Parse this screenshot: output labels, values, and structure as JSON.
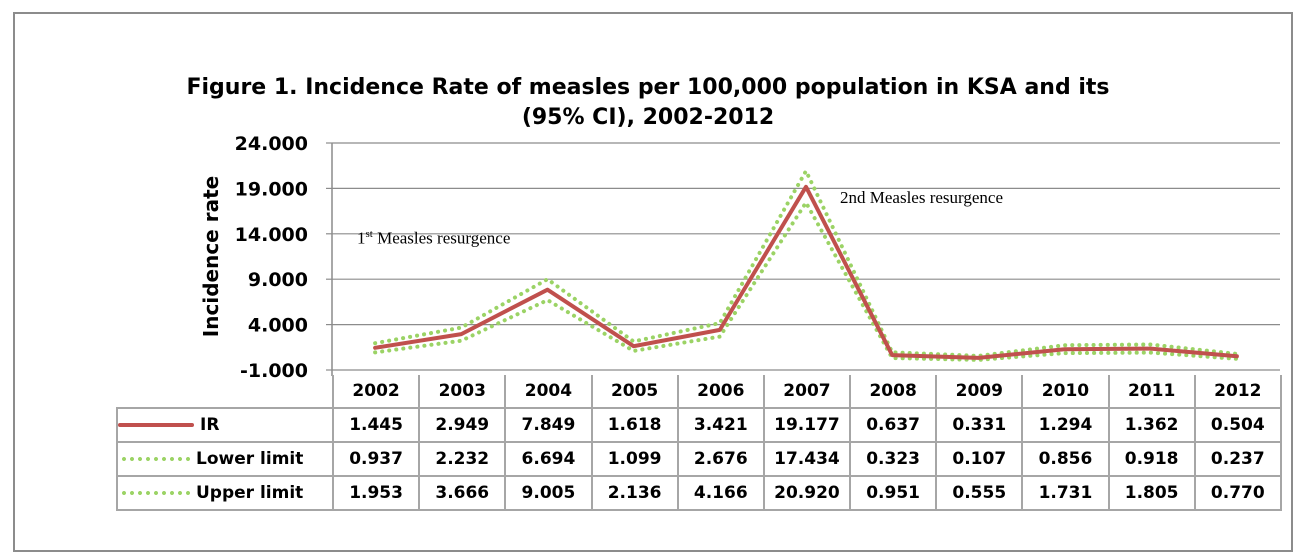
{
  "chart_data": {
    "type": "line",
    "title_line1": "Figure 1. Incidence Rate of measles per 100,000 population in KSA and its",
    "title_line2": "(95% CI), 2002-2012",
    "xlabel": "",
    "ylabel": "Incidence rate",
    "ylim": [
      -1,
      24
    ],
    "yticks": [
      "24.000",
      "19.000",
      "14.000",
      "9.000",
      "4.000",
      "-1.000"
    ],
    "ytick_values": [
      24,
      19,
      14,
      9,
      4,
      -1
    ],
    "grid": true,
    "categories": [
      "2002",
      "2003",
      "2004",
      "2005",
      "2006",
      "2007",
      "2008",
      "2009",
      "2010",
      "2011",
      "2012"
    ],
    "series": [
      {
        "name": "IR",
        "style": "solid",
        "color": "#c0504d",
        "values": [
          1.445,
          2.949,
          7.849,
          1.618,
          3.421,
          19.177,
          0.637,
          0.331,
          1.294,
          1.362,
          0.504
        ],
        "labels": [
          "1.445",
          "2.949",
          "7.849",
          "1.618",
          "3.421",
          "19.177",
          "0.637",
          "0.331",
          "1.294",
          "1.362",
          "0.504"
        ]
      },
      {
        "name": "Lower limit",
        "style": "dotted",
        "color": "#9bd365",
        "values": [
          0.937,
          2.232,
          6.694,
          1.099,
          2.676,
          17.434,
          0.323,
          0.107,
          0.856,
          0.918,
          0.237
        ],
        "labels": [
          "0.937",
          "2.232",
          "6.694",
          "1.099",
          "2.676",
          "17.434",
          "0.323",
          "0.107",
          "0.856",
          "0.918",
          "0.237"
        ]
      },
      {
        "name": "Upper limit",
        "style": "dotted",
        "color": "#9bd365",
        "values": [
          1.953,
          3.666,
          9.005,
          2.136,
          4.166,
          20.92,
          0.951,
          0.555,
          1.731,
          1.805,
          0.77
        ],
        "labels": [
          "1.953",
          "3.666",
          "9.005",
          "2.136",
          "4.166",
          "20.920",
          "0.951",
          "0.555",
          "1.731",
          "1.805",
          "0.770"
        ]
      }
    ],
    "annotations": [
      {
        "sup_prefix": "1",
        "sup": "st",
        "text": " Measles resurgence"
      },
      {
        "text": "2nd Measles resurgence"
      }
    ]
  }
}
